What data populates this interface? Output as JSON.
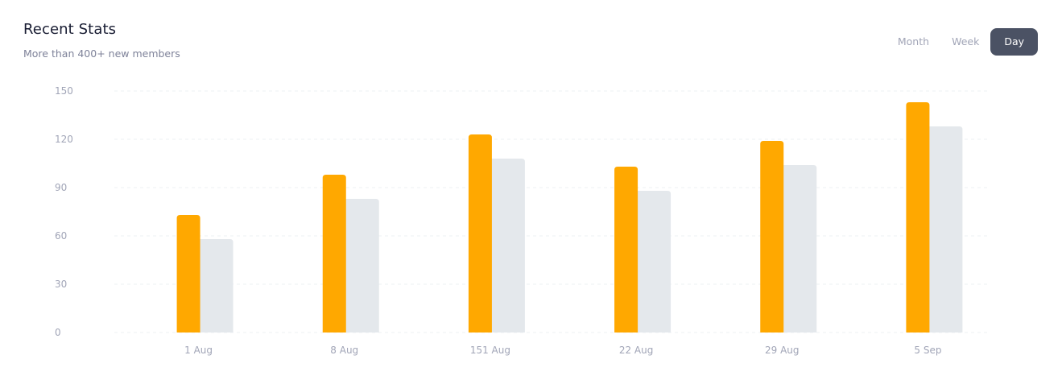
{
  "header": {
    "title": "Recent Stats",
    "subtitle": "More than 400+ new members"
  },
  "tabs": [
    {
      "label": "Month",
      "active": false
    },
    {
      "label": "Week",
      "active": false
    },
    {
      "label": "Day",
      "active": true
    }
  ],
  "colors": {
    "series_primary": "#ffa800",
    "series_secondary": "#e4e8ec",
    "grid": "#eef0f3",
    "tab_active_bg": "#4b5264"
  },
  "chart_data": {
    "type": "bar",
    "categories": [
      "1 Aug",
      "8 Aug",
      "151 Aug",
      "22 Aug",
      "29 Aug",
      "5 Sep"
    ],
    "series": [
      {
        "values": [
          73,
          98,
          123,
          103,
          119,
          143
        ]
      },
      {
        "values": [
          58,
          83,
          108,
          88,
          104,
          128
        ]
      }
    ],
    "yticks": [
      0,
      30,
      60,
      90,
      120,
      150
    ],
    "ylim": [
      0,
      150
    ],
    "grid": true,
    "legend": "none"
  }
}
